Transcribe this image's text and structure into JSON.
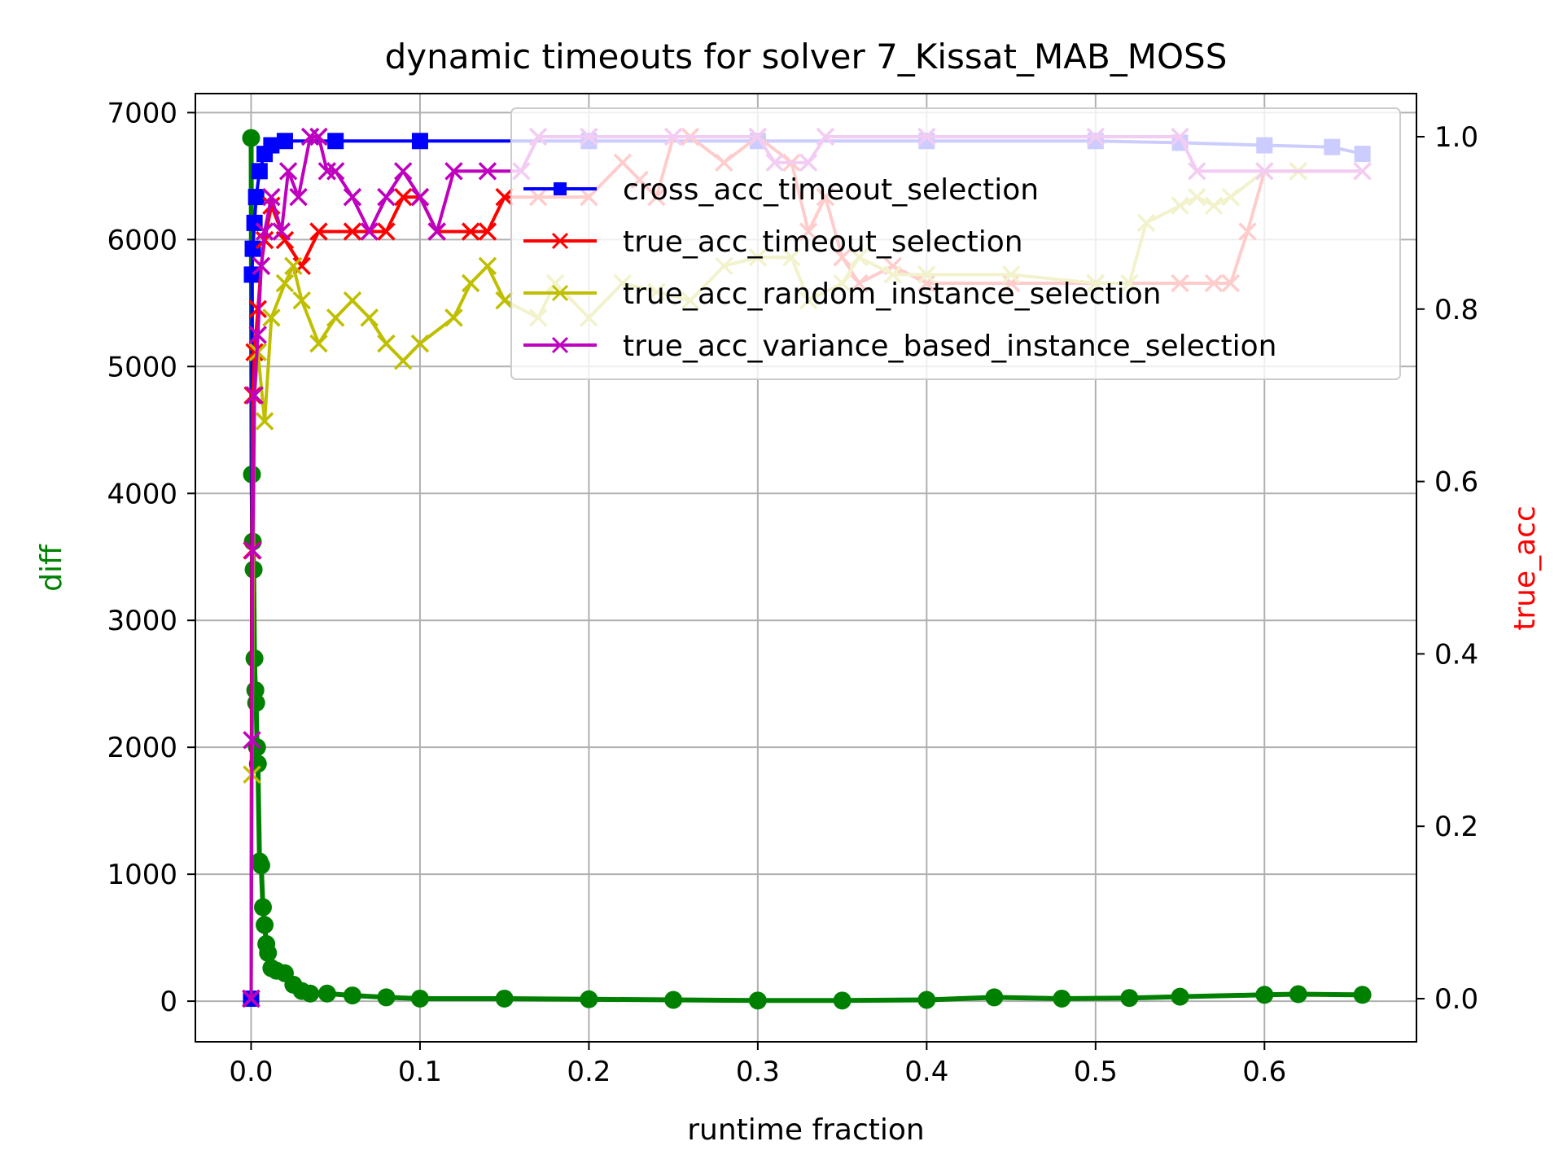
{
  "chart_data": {
    "type": "line",
    "title": "dynamic timeouts for solver 7_Kissat_MAB_MOSS",
    "xlabel": "runtime fraction",
    "ylabel_left": "diff",
    "ylabel_right": "true_acc",
    "xlim": [
      -0.033,
      0.69
    ],
    "ylim_left": [
      -320,
      7150
    ],
    "ylim_right": [
      -0.05,
      1.05
    ],
    "x_ticks": [
      0.0,
      0.1,
      0.2,
      0.3,
      0.4,
      0.5,
      0.6
    ],
    "x_tick_labels": [
      "0.0",
      "0.1",
      "0.2",
      "0.3",
      "0.4",
      "0.5",
      "0.6"
    ],
    "y_left_ticks": [
      0,
      1000,
      2000,
      3000,
      4000,
      5000,
      6000,
      7000
    ],
    "y_left_tick_labels": [
      "0",
      "1000",
      "2000",
      "3000",
      "4000",
      "5000",
      "6000",
      "7000"
    ],
    "y_right_ticks": [
      0.0,
      0.2,
      0.4,
      0.6,
      0.8,
      1.0
    ],
    "y_right_tick_labels": [
      "0.0",
      "0.2",
      "0.4",
      "0.6",
      "0.8",
      "1.0"
    ],
    "grid": true,
    "legend_position": "upper-right",
    "colors": {
      "diff": "#008000",
      "cross": "#0000ff",
      "timeout": "#ff0000",
      "random": "#bfbf00",
      "variance": "#bf00bf",
      "ylabel_left": "#008000",
      "ylabel_right": "#ff0000"
    },
    "series": [
      {
        "key": "diff",
        "axis": "left",
        "marker": "o",
        "points": [
          [
            0.0,
            6800
          ],
          [
            0.0005,
            4150
          ],
          [
            0.001,
            3620
          ],
          [
            0.0015,
            3400
          ],
          [
            0.002,
            2700
          ],
          [
            0.0025,
            2450
          ],
          [
            0.003,
            2350
          ],
          [
            0.0035,
            2000
          ],
          [
            0.004,
            1870
          ],
          [
            0.005,
            1100
          ],
          [
            0.006,
            1070
          ],
          [
            0.007,
            740
          ],
          [
            0.008,
            600
          ],
          [
            0.009,
            450
          ],
          [
            0.01,
            380
          ],
          [
            0.012,
            260
          ],
          [
            0.015,
            240
          ],
          [
            0.02,
            220
          ],
          [
            0.025,
            130
          ],
          [
            0.03,
            80
          ],
          [
            0.035,
            60
          ],
          [
            0.045,
            60
          ],
          [
            0.06,
            45
          ],
          [
            0.08,
            30
          ],
          [
            0.1,
            20
          ],
          [
            0.15,
            20
          ],
          [
            0.2,
            15
          ],
          [
            0.25,
            10
          ],
          [
            0.3,
            5
          ],
          [
            0.35,
            5
          ],
          [
            0.4,
            10
          ],
          [
            0.44,
            30
          ],
          [
            0.48,
            20
          ],
          [
            0.52,
            25
          ],
          [
            0.55,
            35
          ],
          [
            0.6,
            50
          ],
          [
            0.62,
            55
          ],
          [
            0.658,
            50
          ]
        ]
      },
      {
        "key": "cross",
        "name": "cross_acc_timeout_selection",
        "axis": "right",
        "marker": "s",
        "points": [
          [
            0.0,
            0.0
          ],
          [
            0.0005,
            0.84
          ],
          [
            0.001,
            0.87
          ],
          [
            0.002,
            0.9
          ],
          [
            0.003,
            0.93
          ],
          [
            0.005,
            0.96
          ],
          [
            0.008,
            0.98
          ],
          [
            0.012,
            0.99
          ],
          [
            0.02,
            0.995
          ],
          [
            0.05,
            0.995
          ],
          [
            0.1,
            0.995
          ],
          [
            0.2,
            0.995
          ],
          [
            0.3,
            0.995
          ],
          [
            0.4,
            0.995
          ],
          [
            0.5,
            0.995
          ],
          [
            0.55,
            0.993
          ],
          [
            0.6,
            0.99
          ],
          [
            0.64,
            0.988
          ],
          [
            0.658,
            0.98
          ]
        ]
      },
      {
        "key": "timeout",
        "name": "true_acc_timeout_selection",
        "axis": "right",
        "marker": "x",
        "points": [
          [
            0.0,
            0.0
          ],
          [
            0.0005,
            0.52
          ],
          [
            0.001,
            0.7
          ],
          [
            0.002,
            0.75
          ],
          [
            0.004,
            0.8
          ],
          [
            0.006,
            0.85
          ],
          [
            0.008,
            0.88
          ],
          [
            0.012,
            0.92
          ],
          [
            0.02,
            0.88
          ],
          [
            0.03,
            0.85
          ],
          [
            0.04,
            0.89
          ],
          [
            0.06,
            0.89
          ],
          [
            0.08,
            0.89
          ],
          [
            0.09,
            0.93
          ],
          [
            0.1,
            0.93
          ],
          [
            0.11,
            0.89
          ],
          [
            0.13,
            0.89
          ],
          [
            0.14,
            0.89
          ],
          [
            0.15,
            0.93
          ],
          [
            0.17,
            0.93
          ],
          [
            0.2,
            0.93
          ],
          [
            0.22,
            0.97
          ],
          [
            0.23,
            0.95
          ],
          [
            0.24,
            0.93
          ],
          [
            0.25,
            1.0
          ],
          [
            0.26,
            1.0
          ],
          [
            0.28,
            0.97
          ],
          [
            0.3,
            1.0
          ],
          [
            0.32,
            0.97
          ],
          [
            0.33,
            0.89
          ],
          [
            0.34,
            0.93
          ],
          [
            0.35,
            0.86
          ],
          [
            0.36,
            0.83
          ],
          [
            0.38,
            0.85
          ],
          [
            0.4,
            0.83
          ],
          [
            0.45,
            0.83
          ],
          [
            0.5,
            0.83
          ],
          [
            0.55,
            0.83
          ],
          [
            0.57,
            0.83
          ],
          [
            0.58,
            0.83
          ],
          [
            0.59,
            0.89
          ],
          [
            0.6,
            0.96
          ],
          [
            0.62,
            0.96
          ],
          [
            0.658,
            0.96
          ]
        ]
      },
      {
        "key": "random",
        "name": "true_acc_random_instance_selection",
        "axis": "right",
        "marker": "x",
        "points": [
          [
            0.0,
            0.0
          ],
          [
            0.0005,
            0.26
          ],
          [
            0.002,
            0.7
          ],
          [
            0.004,
            0.75
          ],
          [
            0.008,
            0.67
          ],
          [
            0.012,
            0.79
          ],
          [
            0.02,
            0.83
          ],
          [
            0.025,
            0.85
          ],
          [
            0.03,
            0.81
          ],
          [
            0.04,
            0.76
          ],
          [
            0.05,
            0.79
          ],
          [
            0.06,
            0.81
          ],
          [
            0.07,
            0.79
          ],
          [
            0.08,
            0.76
          ],
          [
            0.09,
            0.74
          ],
          [
            0.1,
            0.76
          ],
          [
            0.12,
            0.79
          ],
          [
            0.13,
            0.83
          ],
          [
            0.14,
            0.85
          ],
          [
            0.15,
            0.81
          ],
          [
            0.17,
            0.79
          ],
          [
            0.18,
            0.83
          ],
          [
            0.2,
            0.79
          ],
          [
            0.22,
            0.83
          ],
          [
            0.24,
            0.82
          ],
          [
            0.26,
            0.81
          ],
          [
            0.28,
            0.85
          ],
          [
            0.3,
            0.86
          ],
          [
            0.32,
            0.86
          ],
          [
            0.33,
            0.81
          ],
          [
            0.35,
            0.83
          ],
          [
            0.36,
            0.86
          ],
          [
            0.38,
            0.84
          ],
          [
            0.4,
            0.84
          ],
          [
            0.45,
            0.84
          ],
          [
            0.5,
            0.83
          ],
          [
            0.52,
            0.83
          ],
          [
            0.53,
            0.9
          ],
          [
            0.55,
            0.92
          ],
          [
            0.56,
            0.93
          ],
          [
            0.57,
            0.92
          ],
          [
            0.58,
            0.93
          ],
          [
            0.6,
            0.96
          ],
          [
            0.62,
            0.96
          ],
          [
            0.658,
            0.96
          ]
        ]
      },
      {
        "key": "variance",
        "name": "true_acc_variance_based_instance_selection",
        "axis": "right",
        "marker": "x",
        "points": [
          [
            0.0,
            0.0
          ],
          [
            0.0005,
            0.3
          ],
          [
            0.001,
            0.52
          ],
          [
            0.002,
            0.7
          ],
          [
            0.004,
            0.77
          ],
          [
            0.006,
            0.85
          ],
          [
            0.008,
            0.89
          ],
          [
            0.012,
            0.93
          ],
          [
            0.018,
            0.89
          ],
          [
            0.022,
            0.96
          ],
          [
            0.028,
            0.93
          ],
          [
            0.035,
            1.0
          ],
          [
            0.04,
            1.0
          ],
          [
            0.045,
            0.96
          ],
          [
            0.05,
            0.96
          ],
          [
            0.06,
            0.93
          ],
          [
            0.07,
            0.89
          ],
          [
            0.08,
            0.93
          ],
          [
            0.09,
            0.96
          ],
          [
            0.1,
            0.93
          ],
          [
            0.11,
            0.89
          ],
          [
            0.12,
            0.96
          ],
          [
            0.14,
            0.96
          ],
          [
            0.16,
            0.96
          ],
          [
            0.17,
            1.0
          ],
          [
            0.2,
            1.0
          ],
          [
            0.25,
            1.0
          ],
          [
            0.3,
            1.0
          ],
          [
            0.31,
            0.97
          ],
          [
            0.33,
            0.97
          ],
          [
            0.34,
            1.0
          ],
          [
            0.4,
            1.0
          ],
          [
            0.5,
            1.0
          ],
          [
            0.55,
            1.0
          ],
          [
            0.56,
            0.96
          ],
          [
            0.6,
            0.96
          ],
          [
            0.658,
            0.96
          ]
        ]
      }
    ]
  }
}
